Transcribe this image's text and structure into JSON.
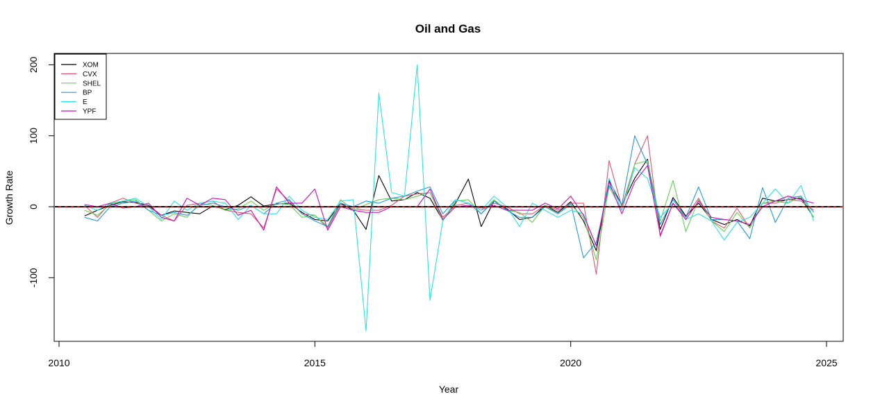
{
  "chart_data": {
    "type": "line",
    "title": "Oil and Gas",
    "xlabel": "Year",
    "ylabel": "Growth Rate",
    "xlim": [
      2010,
      2025
    ],
    "ylim": [
      -200,
      200
    ],
    "x_ticks": [
      2010,
      2015,
      2020,
      2025
    ],
    "y_ticks": [
      -100,
      0,
      100,
      200
    ],
    "grid": false,
    "legend_position": "top-left",
    "reference_lines": [
      {
        "y": 0,
        "style": "dashed",
        "colors": [
          "#000000",
          "#CC0000"
        ]
      }
    ],
    "x": [
      2010.5,
      2010.75,
      2011.0,
      2011.25,
      2011.5,
      2011.75,
      2012.0,
      2012.25,
      2012.5,
      2012.75,
      2013.0,
      2013.25,
      2013.5,
      2013.75,
      2014.0,
      2014.25,
      2014.5,
      2014.75,
      2015.0,
      2015.25,
      2015.5,
      2015.75,
      2016.0,
      2016.25,
      2016.5,
      2016.75,
      2017.0,
      2017.25,
      2017.5,
      2017.75,
      2018.0,
      2018.25,
      2018.5,
      2018.75,
      2019.0,
      2019.25,
      2019.5,
      2019.75,
      2020.0,
      2020.25,
      2020.5,
      2020.75,
      2021.0,
      2021.25,
      2021.5,
      2021.75,
      2022.0,
      2022.25,
      2022.5,
      2022.75,
      2023.0,
      2023.25,
      2023.5,
      2023.75,
      2024.0,
      2024.25,
      2024.5,
      2024.75
    ],
    "series": [
      {
        "name": "XOM",
        "color": "#000000",
        "values": [
          -13,
          -5,
          2,
          7,
          6,
          2,
          -12,
          -6,
          -8,
          -10,
          1,
          -4,
          2,
          14,
          1,
          4,
          5,
          -8,
          -18,
          -20,
          5,
          -5,
          -32,
          44,
          8,
          10,
          20,
          12,
          -19,
          5,
          39,
          -28,
          8,
          -3,
          -18,
          -15,
          2,
          -8,
          7,
          -20,
          -62,
          37,
          2,
          40,
          67,
          -32,
          13,
          -13,
          5,
          -18,
          -25,
          -18,
          -27,
          12,
          8,
          10,
          12,
          -15
        ]
      },
      {
        "name": "CVX",
        "color": "#DF536B",
        "values": [
          2,
          -15,
          5,
          12,
          5,
          0,
          -12,
          -20,
          2,
          5,
          8,
          -5,
          -8,
          -10,
          -30,
          25,
          8,
          -10,
          -12,
          -30,
          3,
          -3,
          -5,
          -5,
          2,
          15,
          18,
          20,
          -15,
          2,
          5,
          -5,
          5,
          0,
          -10,
          -10,
          2,
          -5,
          5,
          5,
          -95,
          65,
          0,
          60,
          100,
          -42,
          5,
          -15,
          12,
          -20,
          -30,
          -2,
          -30,
          5,
          5,
          10,
          8,
          -5
        ]
      },
      {
        "name": "SHEL",
        "color": "#61D04F",
        "values": [
          -5,
          -12,
          3,
          8,
          10,
          -5,
          -20,
          -10,
          -15,
          5,
          2,
          -5,
          -3,
          8,
          -5,
          5,
          3,
          -15,
          -12,
          -28,
          10,
          -5,
          3,
          10,
          12,
          10,
          15,
          20,
          -20,
          8,
          10,
          -10,
          10,
          -5,
          -8,
          -22,
          2,
          -10,
          3,
          -15,
          -75,
          28,
          -5,
          60,
          65,
          -20,
          37,
          -35,
          10,
          -20,
          -35,
          -8,
          -30,
          5,
          8,
          5,
          15,
          -15
        ]
      },
      {
        "name": "BP",
        "color": "#2297E6",
        "values": [
          -15,
          -20,
          0,
          5,
          8,
          -5,
          -12,
          -8,
          -12,
          2,
          5,
          0,
          -5,
          2,
          -10,
          5,
          10,
          -10,
          -20,
          -28,
          5,
          0,
          8,
          5,
          12,
          15,
          22,
          28,
          -10,
          10,
          5,
          -10,
          8,
          -5,
          -15,
          -15,
          0,
          -10,
          5,
          -72,
          -50,
          30,
          3,
          100,
          60,
          -25,
          10,
          -15,
          28,
          -18,
          -18,
          -20,
          -45,
          27,
          -22,
          12,
          15,
          -8
        ]
      },
      {
        "name": "E",
        "color": "#28E2E5",
        "values": [
          2,
          -5,
          5,
          8,
          12,
          0,
          -18,
          8,
          -5,
          5,
          8,
          5,
          -18,
          2,
          -10,
          -10,
          15,
          -5,
          -15,
          -18,
          8,
          10,
          -175,
          160,
          20,
          15,
          200,
          -132,
          -20,
          10,
          5,
          -5,
          15,
          0,
          -28,
          5,
          -5,
          -15,
          -5,
          -10,
          -55,
          40,
          -5,
          55,
          40,
          -15,
          5,
          -18,
          -10,
          -20,
          -47,
          -22,
          -15,
          5,
          25,
          5,
          30,
          -20
        ]
      },
      {
        "name": "YPF",
        "color": "#CD0BBC",
        "values": [
          3,
          0,
          5,
          -2,
          0,
          5,
          -15,
          -20,
          12,
          2,
          12,
          10,
          -12,
          -5,
          -33,
          28,
          5,
          5,
          25,
          -33,
          0,
          -5,
          -8,
          -8,
          0,
          0,
          0,
          25,
          -18,
          0,
          2,
          -2,
          2,
          -5,
          -5,
          -5,
          5,
          -3,
          15,
          -12,
          -55,
          35,
          -10,
          35,
          58,
          -40,
          5,
          -18,
          8,
          -15,
          -18,
          -20,
          -25,
          0,
          8,
          15,
          10,
          5
        ]
      }
    ]
  }
}
